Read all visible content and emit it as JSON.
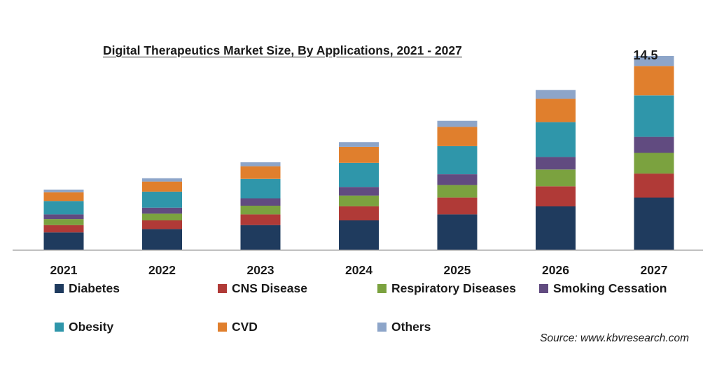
{
  "chart_data": {
    "type": "bar",
    "stacked": true,
    "title": "Digital Therapeutics Market Size, By Applications, 2021 - 2027",
    "xlabel": "",
    "ylabel": "",
    "categories": [
      "2021",
      "2022",
      "2023",
      "2024",
      "2025",
      "2026",
      "2027"
    ],
    "ylim": [
      0,
      15
    ],
    "grid": false,
    "legend_position": "bottom",
    "series": [
      {
        "name": "Diabetes",
        "color": "#1f3b5e",
        "values": [
          1.3,
          1.55,
          1.85,
          2.2,
          2.65,
          3.25,
          3.9
        ]
      },
      {
        "name": "CNS Disease",
        "color": "#b03a37",
        "values": [
          0.55,
          0.65,
          0.8,
          1.05,
          1.25,
          1.5,
          1.8
        ]
      },
      {
        "name": "Respiratory Diseases",
        "color": "#7ba23f",
        "values": [
          0.45,
          0.5,
          0.65,
          0.8,
          0.95,
          1.25,
          1.55
        ]
      },
      {
        "name": "Smoking Cessation",
        "color": "#614b80",
        "values": [
          0.35,
          0.45,
          0.55,
          0.65,
          0.8,
          0.95,
          1.2
        ]
      },
      {
        "name": "Obesity",
        "color": "#2f96aa",
        "values": [
          1.0,
          1.2,
          1.45,
          1.8,
          2.1,
          2.6,
          3.1
        ]
      },
      {
        "name": "CVD",
        "color": "#e07f2d",
        "values": [
          0.65,
          0.75,
          0.95,
          1.2,
          1.45,
          1.75,
          2.2
        ]
      },
      {
        "name": "Others",
        "color": "#8da5c9",
        "values": [
          0.2,
          0.25,
          0.3,
          0.35,
          0.45,
          0.65,
          0.75
        ]
      }
    ],
    "annotations": [
      {
        "category": "2027",
        "text": "14.5"
      }
    ]
  },
  "source_text": "Source: www.kbvresearch.com"
}
